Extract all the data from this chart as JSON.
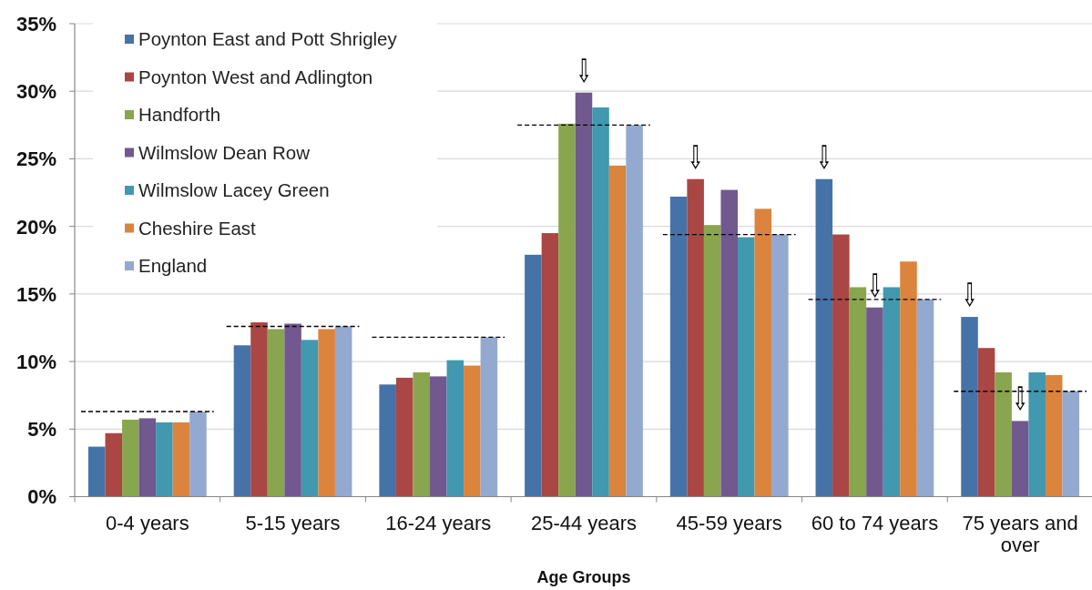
{
  "chart_data": {
    "type": "bar",
    "categories": [
      "0-4 years",
      "5-15 years",
      "16-24 years",
      "25-44 years",
      "45-59 years",
      "60 to 74 years",
      "75 years and over"
    ],
    "series": [
      {
        "name": "Poynton East and Pott Shrigley",
        "color": "#4572a7",
        "values": [
          3.7,
          11.2,
          8.3,
          17.9,
          22.2,
          23.5,
          13.3
        ],
        "value_labels": [
          null,
          null,
          null,
          null,
          null,
          "⇩",
          "⇩"
        ]
      },
      {
        "name": "Poynton West and Adlington",
        "color": "#aa4643",
        "values": [
          4.7,
          12.9,
          8.8,
          19.5,
          23.5,
          19.4,
          11.0
        ],
        "value_labels": [
          null,
          null,
          null,
          null,
          "⇩",
          null,
          null
        ]
      },
      {
        "name": "Handforth",
        "color": "#89a54e",
        "values": [
          5.7,
          12.4,
          9.2,
          27.6,
          20.1,
          15.5,
          9.2
        ]
      },
      {
        "name": "Wilmslow Dean Row",
        "color": "#71588f",
        "values": [
          5.8,
          12.8,
          8.9,
          29.9,
          22.7,
          14.0,
          5.6
        ],
        "value_labels": [
          null,
          null,
          null,
          "⇩",
          null,
          "⇩",
          "⇩"
        ]
      },
      {
        "name": "Wilmslow Lacey Green",
        "color": "#4198af",
        "values": [
          5.5,
          11.6,
          10.1,
          28.8,
          19.2,
          15.5,
          9.2
        ]
      },
      {
        "name": "Cheshire East",
        "color": "#db843d",
        "values": [
          5.5,
          12.4,
          9.7,
          24.5,
          21.3,
          17.4,
          9.0
        ]
      },
      {
        "name": "England",
        "color": "#93a9cf",
        "values": [
          6.3,
          12.6,
          11.8,
          27.5,
          19.4,
          14.6,
          7.8
        ]
      }
    ],
    "xlabel": "Age Groups",
    "ylim": [
      0,
      35
    ],
    "yticks": [
      {
        "value": 0,
        "label": "0%"
      },
      {
        "value": 5,
        "label": "5%"
      },
      {
        "value": 10,
        "label": "10%"
      },
      {
        "value": 15,
        "label": "15%"
      },
      {
        "value": 20,
        "label": "20%"
      },
      {
        "value": 25,
        "label": "25%"
      },
      {
        "value": 30,
        "label": "30%"
      },
      {
        "value": 35,
        "label": "35%"
      }
    ],
    "grid": "y",
    "legend": "top left",
    "ref_lines": [
      {
        "axis": "y",
        "value": 6.3,
        "color": "#000000",
        "line_style": "dashed"
      },
      {
        "axis": "y",
        "value": 12.6,
        "color": "#000000",
        "line_style": "dashed"
      },
      {
        "axis": "y",
        "value": 11.8,
        "color": "#000000",
        "line_style": "dashed"
      },
      {
        "axis": "y",
        "value": 27.5,
        "color": "#000000",
        "line_style": "dashed"
      },
      {
        "axis": "y",
        "value": 19.4,
        "color": "#000000",
        "line_style": "dashed"
      },
      {
        "axis": "y",
        "value": 14.6,
        "color": "#000000",
        "line_style": "dashed"
      },
      {
        "axis": "y",
        "value": 7.8,
        "color": "#000000",
        "line_style": "dashed"
      }
    ]
  }
}
